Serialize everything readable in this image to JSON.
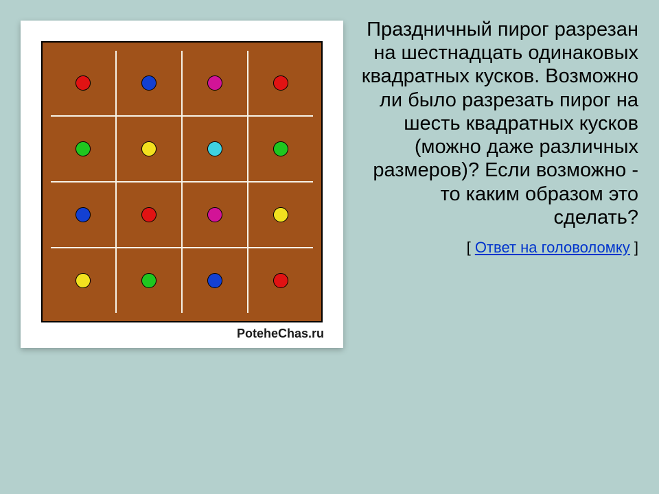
{
  "puzzle": {
    "question": "Праздничный пирог разрезан на шестнадцать одинаковых квадратных кусков. Возможно ли было разрезать пирог на шесть квадратных кусков (можно даже различных размеров)? Если возможно - то каким образом это сделать?",
    "answer_prefix": "[ ",
    "answer_link": "Ответ на головоломку",
    "answer_suffix": " ]",
    "watermark": "PoteheChas.ru"
  },
  "grid": {
    "type": "grid",
    "rows": 4,
    "cols": 4,
    "cell_bg": "#a0521a",
    "line_color": "#f7f3e8",
    "outer_border_color": "#000000",
    "dot_border": "#000000",
    "dots": [
      [
        "#e11313",
        "#1340d2",
        "#d21397",
        "#e11313"
      ],
      [
        "#1fc71f",
        "#f2e11f",
        "#3fd2e1",
        "#1fc71f"
      ],
      [
        "#1340d2",
        "#e11313",
        "#d21397",
        "#f2e11f"
      ],
      [
        "#f2e11f",
        "#1fc71f",
        "#1340d2",
        "#e11313"
      ]
    ]
  },
  "style": {
    "page_bg": "#b4d0cd",
    "card_bg": "#ffffff",
    "text_color": "#000000",
    "link_color": "#0033cc",
    "question_fontsize": 29,
    "answer_fontsize": 22,
    "watermark_fontsize": 18,
    "dot_diameter": 22
  }
}
